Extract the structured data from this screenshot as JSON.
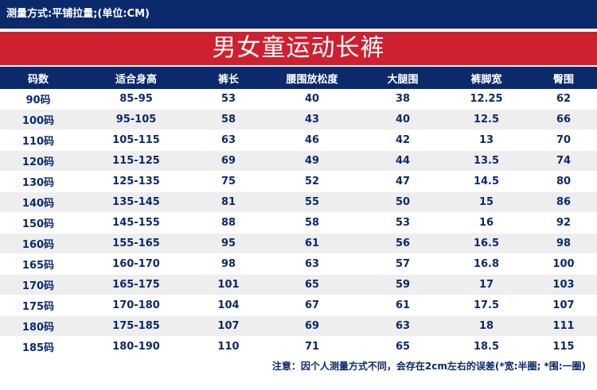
{
  "header": {
    "measure_note": "测量方式:平铺拉量;(单位:CM)",
    "title": "男女童运动长裤"
  },
  "table": {
    "columns": [
      "码数",
      "适合身高",
      "裤长",
      "腰围放松度",
      "大腿围",
      "裤脚宽",
      "臀围"
    ],
    "rows": [
      [
        "90码",
        "85-95",
        "53",
        "40",
        "38",
        "12.25",
        "62"
      ],
      [
        "100码",
        "95-105",
        "58",
        "43",
        "40",
        "12.5",
        "66"
      ],
      [
        "110码",
        "105-115",
        "63",
        "46",
        "42",
        "13",
        "70"
      ],
      [
        "120码",
        "115-125",
        "69",
        "49",
        "44",
        "13.5",
        "74"
      ],
      [
        "130码",
        "125-135",
        "75",
        "52",
        "47",
        "14.5",
        "80"
      ],
      [
        "140码",
        "135-145",
        "81",
        "55",
        "50",
        "15",
        "86"
      ],
      [
        "150码",
        "145-155",
        "88",
        "58",
        "53",
        "16",
        "92"
      ],
      [
        "160码",
        "155-165",
        "95",
        "61",
        "56",
        "16.5",
        "98"
      ],
      [
        "165码",
        "160-170",
        "98",
        "63",
        "57",
        "16.8",
        "100"
      ],
      [
        "170码",
        "165-175",
        "101",
        "65",
        "59",
        "17",
        "103"
      ],
      [
        "175码",
        "170-180",
        "104",
        "67",
        "61",
        "17.5",
        "107"
      ],
      [
        "180码",
        "175-185",
        "107",
        "69",
        "63",
        "18",
        "111"
      ],
      [
        "185码",
        "180-190",
        "110",
        "71",
        "65",
        "18.5",
        "115"
      ]
    ]
  },
  "footer": {
    "note": "注意：因个人测量方式不同，会存在2cm左右的误差(*宽:半圈; *围:一圈)"
  }
}
